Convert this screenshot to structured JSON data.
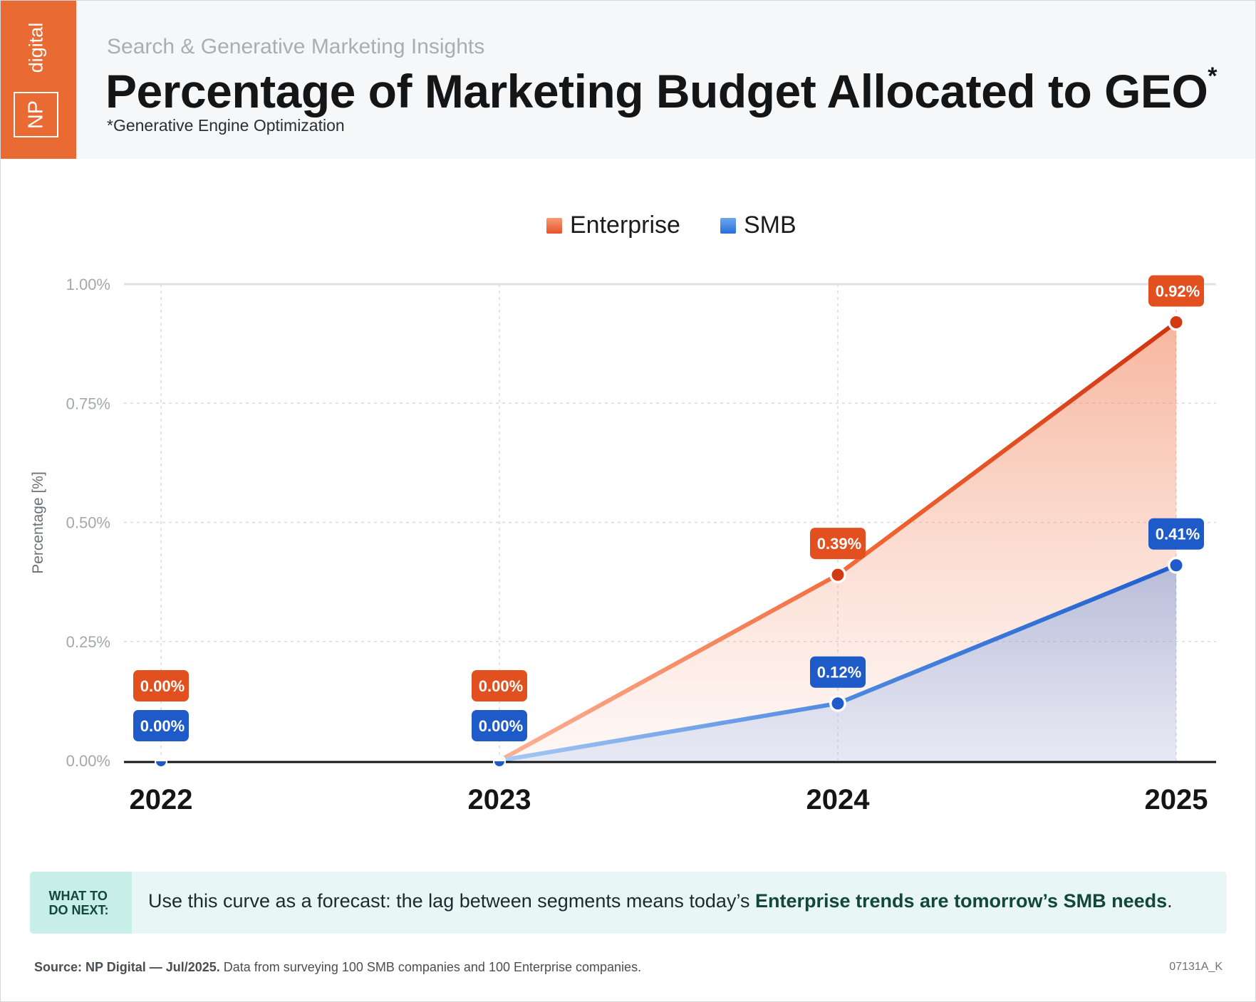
{
  "header": {
    "logo_np": "NP",
    "logo_digital": "digital",
    "kicker": "Search & Generative Marketing Insights",
    "title": "Percentage of Marketing Budget Allocated to GEO",
    "title_asterisk": "*",
    "footnote": "*Generative Engine Optimization"
  },
  "chart_data": {
    "type": "area",
    "categories": [
      "2022",
      "2023",
      "2024",
      "2025"
    ],
    "series": [
      {
        "name": "Enterprise",
        "values": [
          0.0,
          0.0,
          0.39,
          0.92
        ],
        "labels": [
          "0.00%",
          "0.00%",
          "0.39%",
          "0.92%"
        ],
        "color": "#e8522a"
      },
      {
        "name": "SMB",
        "values": [
          0.0,
          0.0,
          0.12,
          0.41
        ],
        "labels": [
          "0.00%",
          "0.00%",
          "0.12%",
          "0.41%"
        ],
        "color": "#1f5fce"
      }
    ],
    "ylabel": "Percentage [%]",
    "ylim": [
      0,
      1
    ],
    "yticks": [
      0,
      0.25,
      0.5,
      0.75,
      1
    ],
    "ytick_labels": [
      "0.00%",
      "0.25%",
      "0.50%",
      "0.75%",
      "1.00%"
    ],
    "grid": true,
    "legend_position": "top-center"
  },
  "callout": {
    "label": "WHAT TO DO NEXT:",
    "text_before": "Use this curve as a forecast: the lag between segments means today’s ",
    "text_bold": "Enterprise trends are tomorrow’s SMB needs",
    "text_after": "."
  },
  "footer": {
    "source_bold": "Source: NP Digital — Jul/2025.",
    "source_rest": " Data from surveying 100 SMB companies and 100 Enterprise companies.",
    "code": "07131A_K"
  }
}
